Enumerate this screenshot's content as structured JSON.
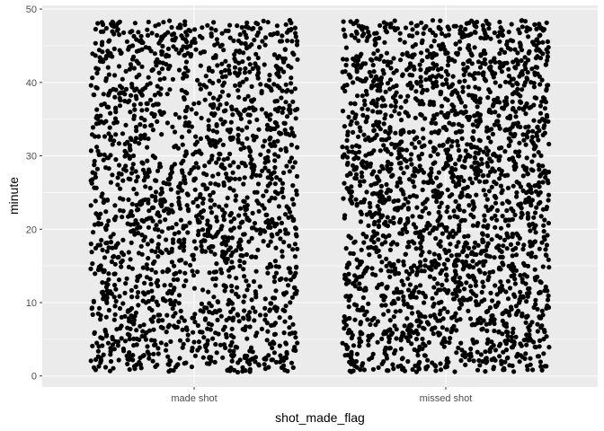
{
  "chart_data": {
    "type": "scatter",
    "jitter": true,
    "categories": [
      "made shot",
      "missed shot"
    ],
    "xlabel": "shot_made_flag",
    "ylabel": "minute",
    "ylim": [
      -1.5,
      50.5
    ],
    "yticks": [
      0,
      10,
      20,
      30,
      40,
      50
    ],
    "grid": true,
    "background": "#ebebeb",
    "point_color": "#000000",
    "series": [
      {
        "category": "made shot",
        "minute_range": [
          0.5,
          48.5
        ],
        "approx_points": 1900
      },
      {
        "category": "missed shot",
        "minute_range": [
          0.5,
          48.5
        ],
        "approx_points": 2300
      }
    ]
  }
}
